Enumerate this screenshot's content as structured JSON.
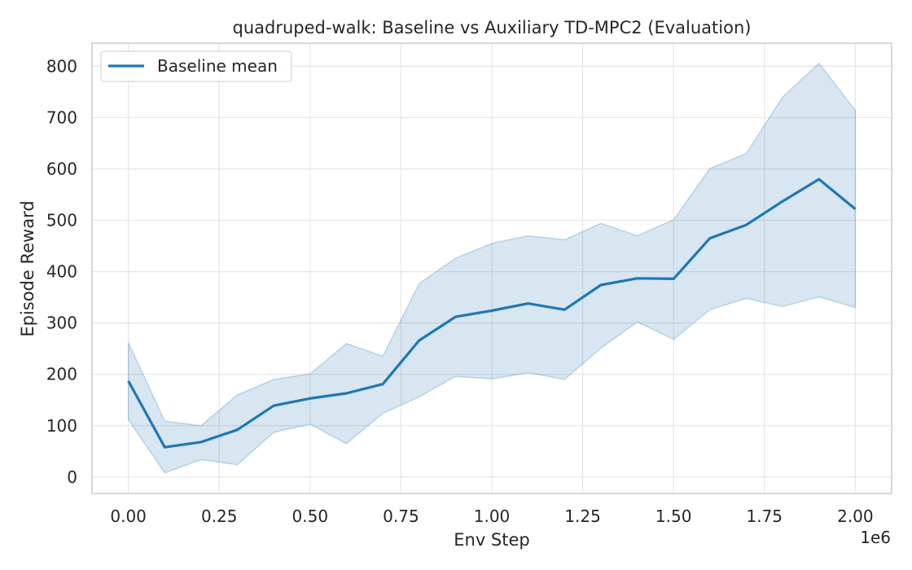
{
  "chart_data": {
    "type": "line",
    "title": "quadruped-walk: Baseline vs Auxiliary TD-MPC2 (Evaluation)",
    "xlabel": "Env Step",
    "ylabel": "Episode Reward",
    "x_offset_label": "1e6",
    "xlim": [
      -0.1,
      2.1
    ],
    "ylim": [
      -32,
      845
    ],
    "x_ticks": [
      0.0,
      0.25,
      0.5,
      0.75,
      1.0,
      1.25,
      1.5,
      1.75,
      2.0
    ],
    "x_tick_labels": [
      "0.00",
      "0.25",
      "0.50",
      "0.75",
      "1.00",
      "1.25",
      "1.50",
      "1.75",
      "2.00"
    ],
    "y_ticks": [
      0,
      100,
      200,
      300,
      400,
      500,
      600,
      700,
      800
    ],
    "y_tick_labels": [
      "0",
      "100",
      "200",
      "300",
      "400",
      "500",
      "600",
      "700",
      "800"
    ],
    "grid": true,
    "legend_position": "top-left",
    "colors": {
      "line": "#1f77b4",
      "band": "#1f77b4",
      "grid": "#e6e6e6",
      "spine": "#cccccc"
    },
    "x": [
      0.0,
      0.1,
      0.2,
      0.3,
      0.4,
      0.5,
      0.6,
      0.7,
      0.8,
      0.9,
      1.0,
      1.1,
      1.2,
      1.3,
      1.4,
      1.5,
      1.6,
      1.7,
      1.8,
      1.9,
      2.0
    ],
    "series": [
      {
        "name": "Baseline mean",
        "values": [
          187,
          58,
          68,
          92,
          139,
          153,
          163,
          181,
          266,
          312,
          324,
          338,
          326,
          374,
          387,
          386,
          465,
          491,
          537,
          580,
          522
        ],
        "lower": [
          112,
          8,
          34,
          24,
          87,
          103,
          65,
          124,
          156,
          196,
          191,
          203,
          190,
          251,
          302,
          268,
          326,
          348,
          332,
          351,
          330
        ],
        "upper": [
          262,
          109,
          100,
          160,
          190,
          201,
          260,
          235,
          377,
          426,
          455,
          470,
          462,
          494,
          470,
          501,
          601,
          630,
          740,
          806,
          714
        ]
      }
    ]
  }
}
